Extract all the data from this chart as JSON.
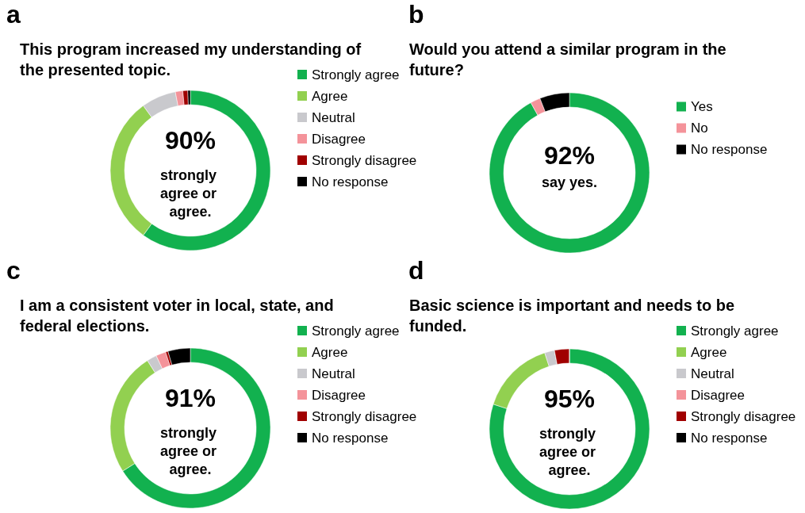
{
  "chart_data": [
    {
      "type": "donut",
      "title": "This program increased my understanding of the presented topic.",
      "categories": [
        "Strongly agree",
        "Agree",
        "Neutral",
        "Disagree",
        "Strongly disagree",
        "No response"
      ],
      "values": [
        60,
        30,
        7,
        1.5,
        1,
        0.5
      ],
      "colors": [
        "#12b14f",
        "#92d050",
        "#c9c9cd",
        "#f4939a",
        "#a00000",
        "#000000"
      ],
      "legend": "right",
      "annotations": [
        "a",
        "90%",
        "strongly agree or agree."
      ]
    },
    {
      "type": "donut",
      "title": "Would you attend a similar program in the future?",
      "categories": [
        "Yes",
        "No",
        "No response"
      ],
      "values": [
        92,
        2,
        6
      ],
      "colors": [
        "#12b14f",
        "#f4939a",
        "#000000"
      ],
      "legend": "right",
      "annotations": [
        "b",
        "92%",
        "say yes."
      ]
    },
    {
      "type": "donut",
      "title": "I am a consistent voter in local, state, and federal elections.",
      "categories": [
        "Strongly agree",
        "Agree",
        "Neutral",
        "Disagree",
        "Strongly disagree",
        "No response"
      ],
      "values": [
        66,
        25,
        2,
        2,
        0.5,
        4.5
      ],
      "colors": [
        "#12b14f",
        "#92d050",
        "#c9c9cd",
        "#f4939a",
        "#a00000",
        "#000000"
      ],
      "legend": "right",
      "annotations": [
        "c",
        "91%",
        "strongly agree or agree."
      ]
    },
    {
      "type": "donut",
      "title": "Basic science is important and needs to be funded.",
      "categories": [
        "Strongly agree",
        "Agree",
        "Neutral",
        "Disagree",
        "Strongly disagree",
        "No response"
      ],
      "values": [
        80,
        15,
        2,
        0,
        3,
        0
      ],
      "colors": [
        "#12b14f",
        "#92d050",
        "#c9c9cd",
        "#f4939a",
        "#a00000",
        "#000000"
      ],
      "legend": "right",
      "annotations": [
        "d",
        "95%",
        "strongly agree or agree."
      ]
    }
  ]
}
